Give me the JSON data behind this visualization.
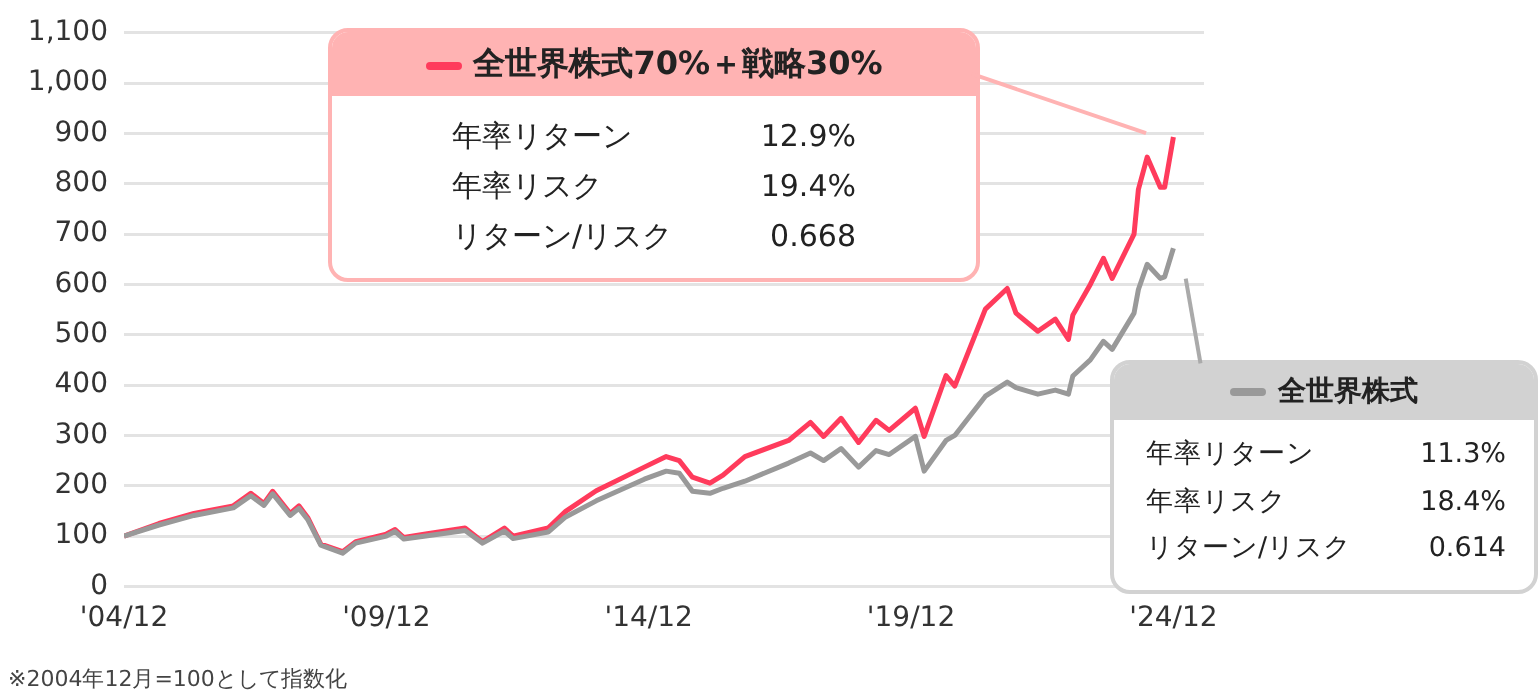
{
  "chart_data": {
    "type": "line",
    "x": [
      "2004-12",
      "2005-08",
      "2006-04",
      "2007-01",
      "2007-05",
      "2007-08",
      "2007-10",
      "2008-02",
      "2008-04",
      "2008-06",
      "2008-09",
      "2009-02",
      "2009-05",
      "2009-12",
      "2010-02",
      "2010-04",
      "2010-09",
      "2011-06",
      "2011-10",
      "2012-03",
      "2012-05",
      "2013-01",
      "2013-05",
      "2013-12",
      "2014-11",
      "2015-04",
      "2015-07",
      "2015-10",
      "2016-02",
      "2016-05",
      "2016-10",
      "2017-08",
      "2018-01",
      "2018-04",
      "2018-08",
      "2018-12",
      "2019-04",
      "2019-07",
      "2020-01",
      "2020-03",
      "2020-08",
      "2020-10",
      "2021-05",
      "2021-10",
      "2021-12",
      "2022-05",
      "2022-09",
      "2022-12",
      "2023-01",
      "2023-05",
      "2023-08",
      "2023-10",
      "2024-03",
      "2024-04",
      "2024-06",
      "2024-09",
      "2024-10",
      "2024-12"
    ],
    "series": [
      {
        "name": "全世界株式",
        "color": "#999999",
        "values": [
          100,
          122,
          141,
          156,
          180,
          161,
          184,
          141,
          155,
          133,
          82,
          66,
          86,
          100,
          109,
          94,
          100,
          111,
          86,
          110,
          95,
          108,
          138,
          170,
          213,
          229,
          225,
          189,
          185,
          195,
          209,
          245,
          265,
          250,
          274,
          237,
          270,
          262,
          298,
          229,
          290,
          300,
          378,
          406,
          395,
          382,
          390,
          382,
          418,
          450,
          487,
          471,
          543,
          590,
          640,
          612,
          615,
          672
        ]
      },
      {
        "name": "全世界株式70%＋戦略30%",
        "color": "#ff3b5c",
        "values": [
          100,
          125,
          145,
          160,
          185,
          165,
          189,
          145,
          160,
          137,
          84,
          69,
          89,
          104,
          113,
          97,
          104,
          116,
          89,
          116,
          100,
          116,
          149,
          190,
          237,
          258,
          250,
          217,
          205,
          221,
          258,
          290,
          326,
          298,
          334,
          286,
          330,
          310,
          354,
          298,
          419,
          398,
          551,
          592,
          543,
          507,
          531,
          491,
          539,
          600,
          652,
          612,
          700,
          789,
          853,
          793,
          793,
          893
        ]
      }
    ],
    "xlim": [
      "2004-12",
      "2025-07"
    ],
    "xticks": [
      {
        "value": "2004-12",
        "label": "'04/12"
      },
      {
        "value": "2009-12",
        "label": "'09/12"
      },
      {
        "value": "2014-12",
        "label": "'14/12"
      },
      {
        "value": "2019-12",
        "label": "'19/12"
      },
      {
        "value": "2024-12",
        "label": "'24/12"
      }
    ],
    "ylim": [
      0,
      1100
    ],
    "yticks": [
      0,
      100,
      200,
      300,
      400,
      500,
      600,
      700,
      800,
      900,
      {
        "value": 1000,
        "label": "1,000"
      },
      {
        "value": 1100,
        "label": "1,100"
      }
    ],
    "grid": "y",
    "legend": "right",
    "annotations": [
      "年率リターン 11.3%",
      "年率リスク 18.4%",
      "リターン/リスク 0.614",
      "年率リターン 12.9%",
      "年率リスク 19.4%",
      "リターン/リスク 0.668",
      "※2004年12月=100として指数化"
    ]
  }
}
